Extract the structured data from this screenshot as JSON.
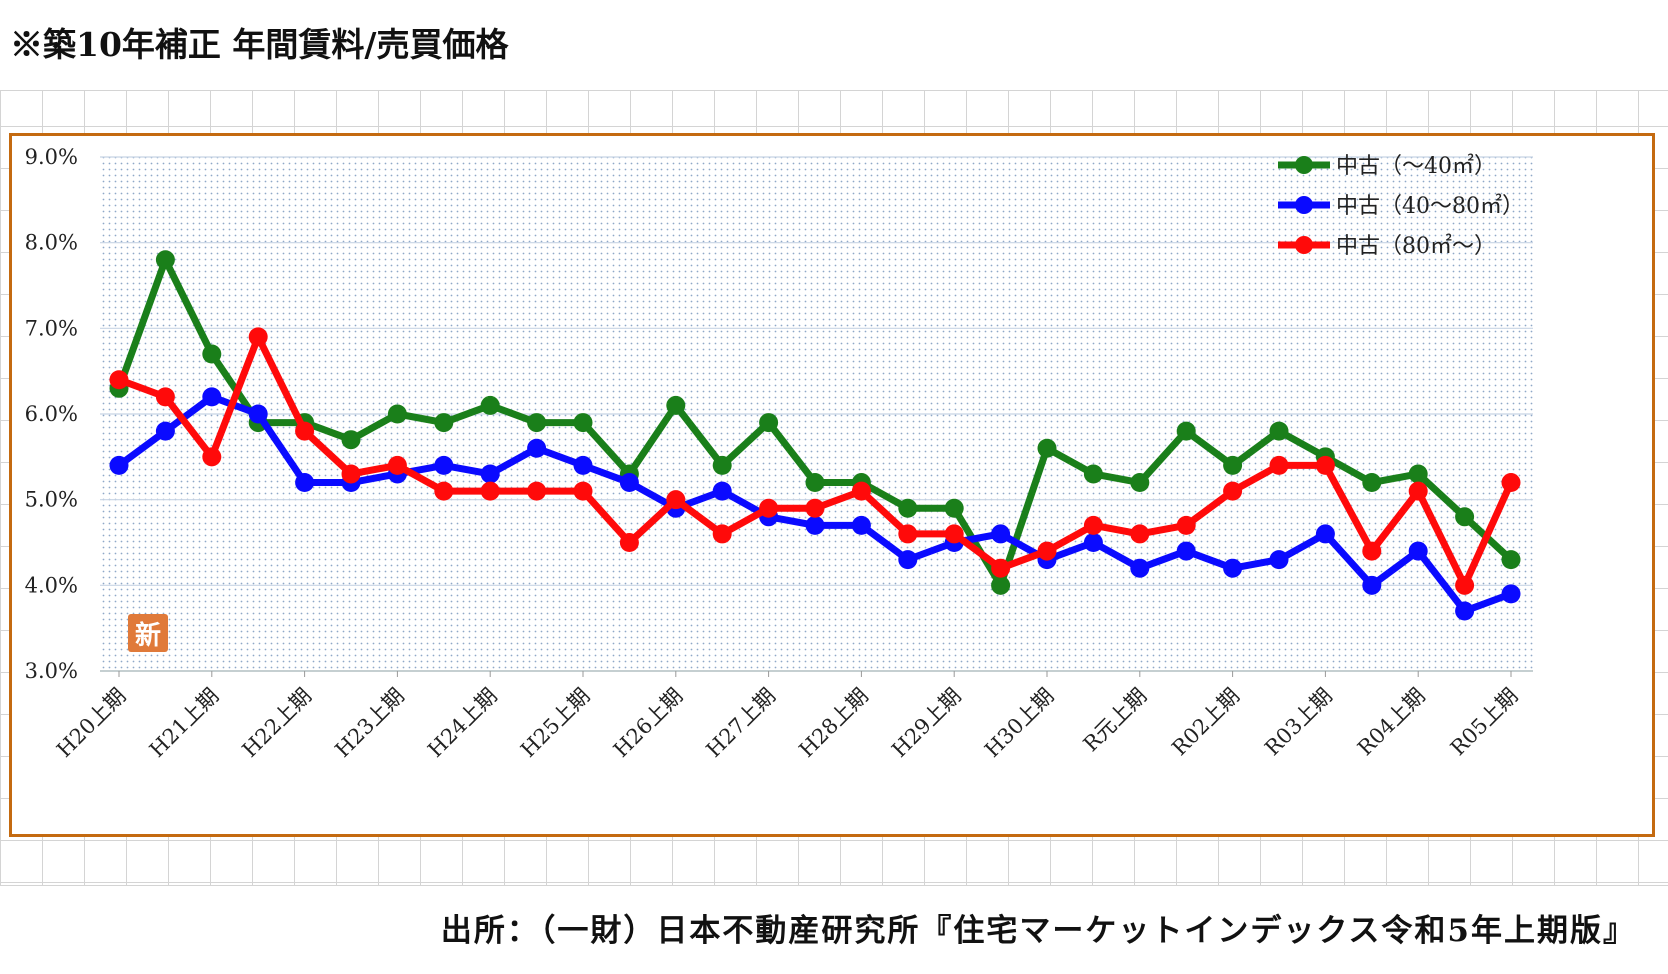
{
  "page": {
    "title": "※築10年補正 年間賃料/売買価格",
    "source": "出所：（一財）日本不動産研究所『住宅マーケットインデックス令和5年上期版』"
  },
  "chart_data": {
    "type": "line",
    "title": "",
    "xlabel": "",
    "ylabel": "",
    "ylim": [
      3.0,
      9.0
    ],
    "y_ticks": [
      "3.0%",
      "4.0%",
      "5.0%",
      "6.0%",
      "7.0%",
      "8.0%",
      "9.0%"
    ],
    "categories": [
      "H20上期",
      "H20下期",
      "H21上期",
      "H21下期",
      "H22上期",
      "H22下期",
      "H23上期",
      "H23下期",
      "H24上期",
      "H24下期",
      "H25上期",
      "H25下期",
      "H26上期",
      "H26下期",
      "H27上期",
      "H27下期",
      "H28上期",
      "H28下期",
      "H29上期",
      "H29下期",
      "H30上期",
      "H30下期",
      "R元上期",
      "R元下期",
      "R02上期",
      "R02下期",
      "R03上期",
      "R03下期",
      "R04上期",
      "R04下期",
      "R05上期"
    ],
    "category_labels_shown": [
      "H20上期",
      "H21上期",
      "H22上期",
      "H23上期",
      "H24上期",
      "H25上期",
      "H26上期",
      "H27上期",
      "H28上期",
      "H29上期",
      "H30上期",
      "R元上期",
      "R02上期",
      "R03上期",
      "R04上期",
      "R05上期"
    ],
    "grid": true,
    "legend_position": "top-right",
    "series": [
      {
        "name": "中古（～40㎡）",
        "color": "#1a7f1a",
        "values": [
          6.3,
          7.8,
          6.7,
          5.9,
          5.9,
          5.7,
          6.0,
          5.9,
          6.1,
          5.9,
          5.9,
          5.3,
          6.1,
          5.4,
          5.9,
          5.2,
          5.2,
          4.9,
          4.9,
          4.0,
          5.6,
          5.3,
          5.2,
          5.8,
          5.4,
          5.8,
          5.5,
          5.2,
          5.3,
          4.8,
          4.3
        ]
      },
      {
        "name": "中古（40～80㎡）",
        "color": "#0a0aff",
        "values": [
          5.4,
          5.8,
          6.2,
          6.0,
          5.2,
          5.2,
          5.3,
          5.4,
          5.3,
          5.6,
          5.4,
          5.2,
          4.9,
          5.1,
          4.8,
          4.7,
          4.7,
          4.3,
          4.5,
          4.6,
          4.3,
          4.5,
          4.2,
          4.4,
          4.2,
          4.3,
          4.6,
          4.0,
          4.4,
          3.7,
          3.9
        ]
      },
      {
        "name": "中古（80㎡～）",
        "color": "#ff0a0a",
        "values": [
          6.4,
          6.2,
          5.5,
          6.9,
          5.8,
          5.3,
          5.4,
          5.1,
          5.1,
          5.1,
          5.1,
          4.5,
          5.0,
          4.6,
          4.9,
          4.9,
          5.1,
          4.6,
          4.6,
          4.2,
          4.4,
          4.7,
          4.6,
          4.7,
          5.1,
          5.4,
          5.4,
          4.4,
          5.1,
          4.0,
          5.2
        ]
      }
    ],
    "badge": {
      "text": "新",
      "color": "#e07a3a"
    }
  }
}
